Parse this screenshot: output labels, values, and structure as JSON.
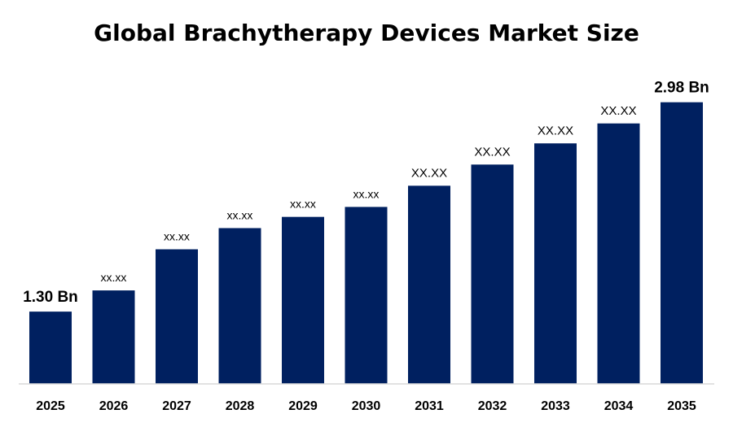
{
  "chart_data": {
    "type": "bar",
    "title": "Global Brachytherapy Devices Market Size",
    "xlabel": "",
    "ylabel": "",
    "categories": [
      "2025",
      "2026",
      "2027",
      "2028",
      "2029",
      "2030",
      "2031",
      "2032",
      "2033",
      "2034",
      "2035"
    ],
    "values": [
      1.3,
      1.47,
      1.8,
      1.97,
      2.06,
      2.14,
      2.31,
      2.48,
      2.65,
      2.81,
      2.98
    ],
    "data_labels": [
      "1.30 Bn",
      "xx.xx",
      "xx.xx",
      "xx.xx",
      "xx.xx",
      "xx.xx",
      "XX.XX",
      "XX.XX",
      "XX.XX",
      "XX.XX",
      "2.98 Bn"
    ],
    "ylim": [
      0.72,
      3.2
    ],
    "grid": false,
    "legend": "none",
    "bar_color": "#002060",
    "axis_color": "#d9d9d9"
  }
}
